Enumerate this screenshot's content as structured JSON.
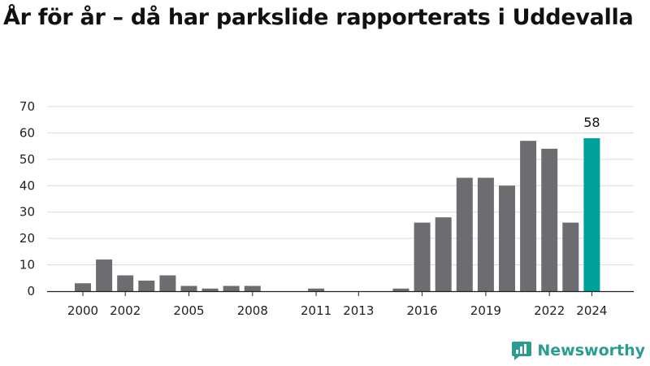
{
  "title": "År för år – då har parkslide rapporterats i Uddevalla",
  "brand": {
    "name": "Newsworthy",
    "logo_icon": "newsworthy-logo-icon",
    "color": "#2a9d90"
  },
  "colors": {
    "bar": "#6d6c71",
    "highlight": "#00a19a",
    "grid": "#dcdcdc",
    "axis": "#222222"
  },
  "chart_data": {
    "type": "bar",
    "x": [
      2000,
      2001,
      2002,
      2003,
      2004,
      2005,
      2006,
      2007,
      2008,
      2009,
      2010,
      2011,
      2012,
      2013,
      2014,
      2015,
      2016,
      2017,
      2018,
      2019,
      2020,
      2021,
      2022,
      2023,
      2024
    ],
    "values": [
      3,
      12,
      6,
      4,
      6,
      2,
      1,
      2,
      2,
      0,
      0,
      1,
      0,
      0,
      0,
      1,
      26,
      28,
      43,
      43,
      40,
      57,
      54,
      26,
      58
    ],
    "x_tick_labels": [
      2000,
      2002,
      2005,
      2008,
      2011,
      2013,
      2016,
      2019,
      2022,
      2024
    ],
    "ylim": [
      0,
      70
    ],
    "y_ticks": [
      0,
      10,
      20,
      30,
      40,
      50,
      60,
      70
    ],
    "grid": "horizontal",
    "highlight": {
      "x": 2024,
      "label": "58"
    },
    "xlabel": "",
    "ylabel": ""
  }
}
